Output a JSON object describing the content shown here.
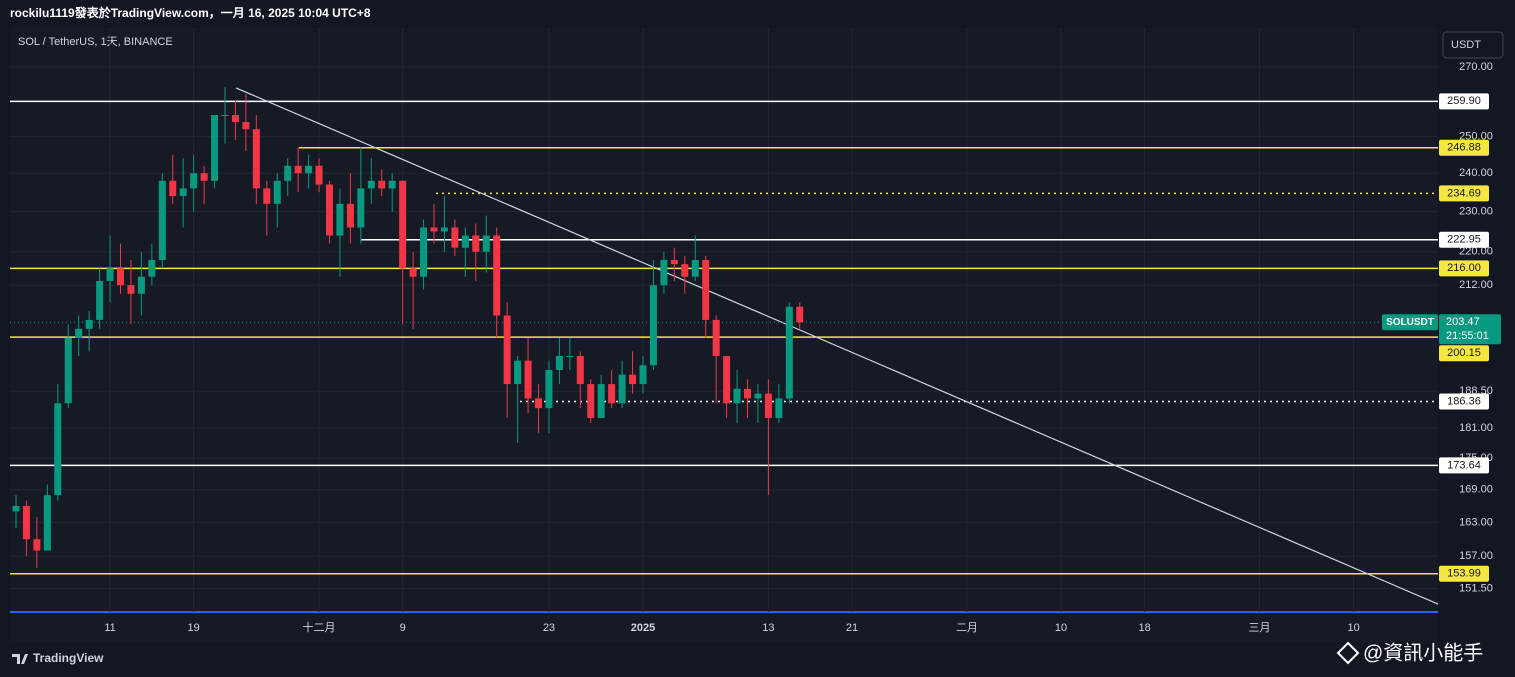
{
  "header": {
    "title": "rockilu1119發表於TradingView.com，一月 16, 2025 10:04 UTC+8"
  },
  "chart_data": {
    "type": "candlestick",
    "title": "SOL / TetherUS, 1天, BINANCE",
    "currency": "USDT",
    "symbol": "SOLUSDT",
    "countdown": "21:55:01",
    "last": {
      "value": 203.47,
      "label": "203.47",
      "color": "#089981"
    },
    "log": true,
    "grid": true,
    "up_color": "#089981",
    "down_color": "#f23645",
    "ylim": [
      147.6,
      281.9
    ],
    "yticks": [
      {
        "value": 270,
        "label": "270.00"
      },
      {
        "value": 250,
        "label": "250.00"
      },
      {
        "value": 240,
        "label": "240.00"
      },
      {
        "value": 230,
        "label": "230.00"
      },
      {
        "value": 220,
        "label": "220.00"
      },
      {
        "value": 212,
        "label": "212.00"
      },
      {
        "value": 188.5,
        "label": "188.50"
      },
      {
        "value": 181,
        "label": "181.00"
      },
      {
        "value": 175,
        "label": "175.00"
      },
      {
        "value": 169,
        "label": "169.00"
      },
      {
        "value": 163,
        "label": "163.00"
      },
      {
        "value": 157,
        "label": "157.00"
      },
      {
        "value": 151.5,
        "label": "151.50"
      }
    ],
    "xlabels": [
      "11",
      "19",
      "十二月",
      "9",
      "23",
      "2025",
      "13",
      "21",
      "二月",
      "10",
      "18",
      "三月",
      "10"
    ],
    "open": [
      165,
      166,
      160,
      158,
      168,
      186,
      200,
      202,
      204,
      213,
      216,
      212,
      210,
      214,
      218,
      238,
      234,
      236,
      240,
      238,
      256,
      256,
      254,
      252,
      236,
      232,
      238,
      242,
      240,
      242,
      237,
      224,
      232,
      226,
      236,
      238,
      236,
      238,
      216,
      214,
      226,
      225,
      226,
      221,
      224,
      220,
      224,
      205,
      190,
      195,
      187,
      185,
      193,
      196,
      196,
      190,
      183,
      190,
      186,
      192,
      190,
      194,
      212,
      218,
      217,
      214,
      218,
      204,
      196,
      186,
      189,
      187,
      188,
      183,
      187,
      207
    ],
    "high": [
      168,
      167,
      164,
      170,
      190,
      203,
      205,
      206,
      216,
      224,
      222,
      218,
      220,
      222,
      240,
      245,
      244,
      245,
      242,
      256,
      264,
      260,
      262,
      256,
      238,
      240,
      244,
      247,
      245,
      244,
      238,
      236,
      240,
      247,
      244,
      241,
      240,
      238,
      220,
      228,
      232,
      234,
      228,
      226,
      227,
      229,
      226,
      208,
      196,
      200,
      190,
      195,
      200,
      200,
      197,
      191,
      192,
      193,
      195,
      197,
      196,
      218,
      220,
      221,
      219,
      224,
      219,
      205,
      196,
      193,
      191,
      190,
      191,
      190,
      208,
      208
    ],
    "low": [
      162,
      157,
      155,
      158,
      167,
      185,
      196,
      197,
      202,
      208,
      210,
      203,
      205,
      212,
      216,
      232,
      226,
      230,
      232,
      236,
      248,
      249,
      246,
      232,
      224,
      226,
      234,
      235,
      236,
      235,
      222,
      214,
      222,
      222,
      232,
      234,
      230,
      203,
      202,
      211,
      222,
      220,
      219,
      214,
      213,
      215,
      200,
      183,
      178,
      184,
      180,
      180,
      190,
      193,
      185,
      182,
      183,
      185,
      185,
      188,
      188,
      193,
      210,
      213,
      210,
      213,
      200,
      186,
      183,
      182,
      183,
      182,
      168,
      182,
      186,
      202
    ],
    "close": [
      166,
      160,
      158,
      168,
      186,
      200,
      202,
      204,
      213,
      216,
      212,
      210,
      214,
      218,
      238,
      234,
      236,
      240,
      238,
      256,
      256,
      254,
      252,
      236,
      232,
      238,
      242,
      240,
      242,
      237,
      224,
      232,
      226,
      236,
      238,
      236,
      238,
      216,
      214,
      226,
      225,
      226,
      221,
      224,
      220,
      224,
      205,
      190,
      195,
      187,
      185,
      193,
      196,
      196,
      190,
      183,
      190,
      186,
      192,
      190,
      194,
      212,
      218,
      217,
      214,
      218,
      204,
      196,
      186,
      189,
      187,
      188,
      183,
      187,
      207,
      203.47
    ],
    "levels": [
      {
        "value": 259.9,
        "label": "259.90",
        "color": "#ffffff",
        "style": "solid"
      },
      {
        "value": 246.88,
        "label": "246.88",
        "color": "#f5e642",
        "style": "solid"
      },
      {
        "value": 234.69,
        "label": "234.69",
        "color": "#f5e642",
        "style": "dotted"
      },
      {
        "value": 222.95,
        "label": "222.95",
        "color": "#ffffff",
        "style": "solid"
      },
      {
        "value": 216,
        "label": "216.00",
        "color": "#f5e642",
        "style": "solid"
      },
      {
        "value": 200.15,
        "label": "200.15",
        "color": "#f5e642",
        "style": "solid"
      },
      {
        "value": 186.36,
        "label": "186.36",
        "color": "#ffffff",
        "style": "dotted"
      },
      {
        "value": 173.64,
        "label": "173.64",
        "color": "#ffffff",
        "style": "solid"
      },
      {
        "value": 153.99,
        "label": "153.99",
        "color": "#f5e642",
        "style": "solid"
      }
    ],
    "trendline": {
      "values": [
        263.8,
        148.9
      ],
      "color": "#d1d4dc"
    }
  },
  "footer": {
    "logo": "TradingView",
    "watermark": "@資訊小能手"
  }
}
